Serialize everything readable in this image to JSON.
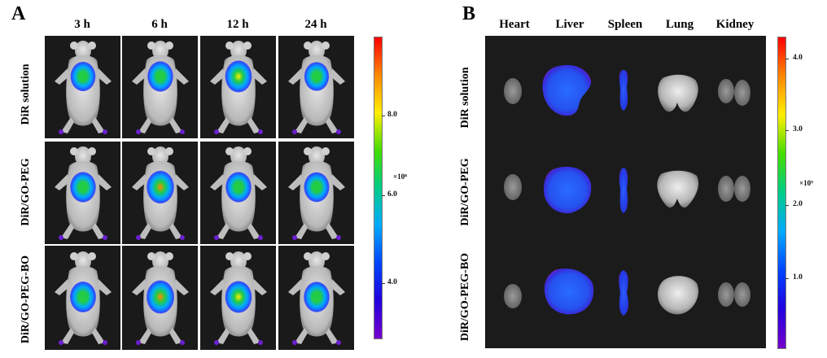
{
  "panel_a": {
    "letter": "A",
    "columns": [
      "3 h",
      "6 h",
      "12 h",
      "24 h"
    ],
    "rows": [
      "DiR solution",
      "DiR/GO-PEG",
      "DiR/GO-PEG-BO"
    ],
    "colorbar": {
      "unit": "×10⁸",
      "ticks": [
        "8.0",
        "6.0",
        "4.0"
      ],
      "gradient": [
        "#ff0000",
        "#ff8800",
        "#ffee00",
        "#44dd00",
        "#00cc88",
        "#00aaff",
        "#0044ff",
        "#2200dd",
        "#7700cc"
      ]
    }
  },
  "panel_b": {
    "letter": "B",
    "columns": [
      "Heart",
      "Liver",
      "Spleen",
      "Lung",
      "Kidney"
    ],
    "rows": [
      "DiR solution",
      "DiR/GO-PEG",
      "DiR/GO-PEG-BO"
    ],
    "colorbar": {
      "unit": "×10⁹",
      "ticks": [
        "4.0",
        "3.0",
        "2.0",
        "1.0"
      ],
      "gradient": [
        "#ff0000",
        "#ff8800",
        "#ffee00",
        "#44dd00",
        "#00cc88",
        "#00aaff",
        "#0044ff",
        "#2200dd",
        "#7700cc"
      ]
    }
  },
  "signal_colors": {
    "high": "#ff8800",
    "mid_high": "#ffee00",
    "mid": "#22cc44",
    "mid_low": "#00aaff",
    "low": "#2a4cff",
    "edge": "#6a1fd0"
  }
}
